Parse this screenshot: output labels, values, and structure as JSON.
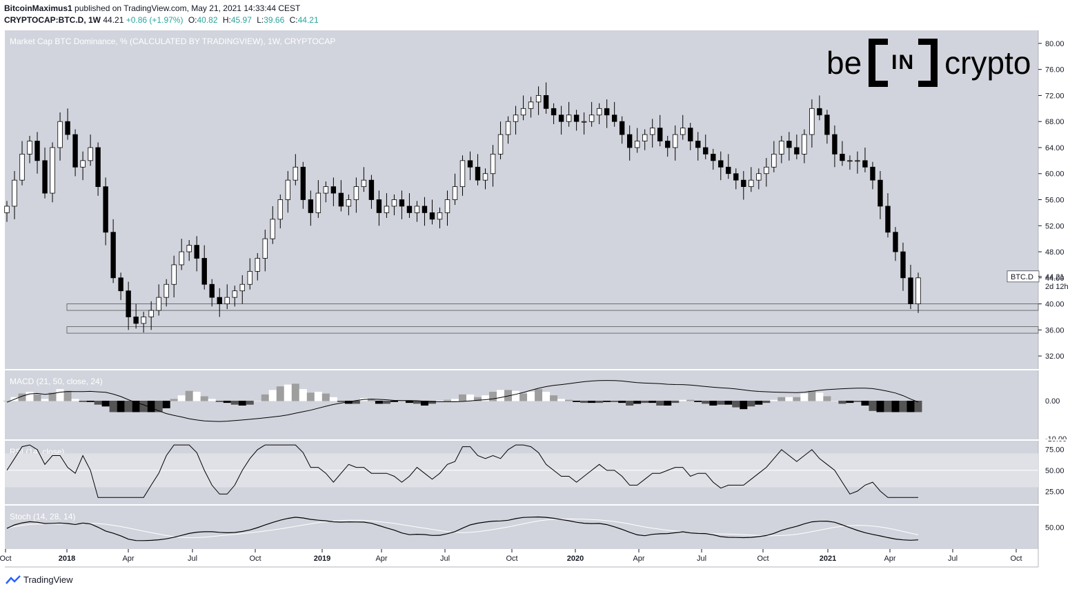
{
  "header": {
    "author": "BitcoinMaximus1",
    "published": "published on TradingView.com, May 21, 2021 14:33:44 CEST",
    "symbol": "CRYPTOCAP:BTC.D, 1W",
    "last": "44.21",
    "change": "+0.86 (+1.97%)",
    "o_label": "O:",
    "o_val": "40.82",
    "h_label": "H:",
    "h_val": "45.97",
    "l_label": "L:",
    "l_val": "39.66",
    "c_label": "C:",
    "c_val": "44.21"
  },
  "main_title": "Market Cap BTC Dominance, % (CALCULATED BY TRADINGVIEW), 1W, CRYPTOCAP",
  "price_tag": {
    "symbol": "BTC.D",
    "value": "44.21",
    "countdown": "2d 12h"
  },
  "logo": {
    "left": "be",
    "middle": "IN",
    "right": "crypto"
  },
  "footer": {
    "brand": "TradingView"
  },
  "colors": {
    "pane_bg": "#d1d4dc",
    "up": "#ffffff",
    "down": "#000000",
    "accent": "#26a69a"
  },
  "chart_data": [
    {
      "type": "candlestick",
      "title": "Market Cap BTC Dominance, % (CALCULATED BY TRADINGVIEW), 1W, CRYPTOCAP",
      "ylim": [
        30,
        82
      ],
      "y_ticks": [
        "80.00",
        "76.00",
        "72.00",
        "68.00",
        "64.00",
        "60.00",
        "56.00",
        "52.00",
        "48.00",
        "44.00",
        "40.00",
        "36.00",
        "32.00"
      ],
      "x_ticks": [
        "Oct",
        "2018",
        "Apr",
        "Jul",
        "Oct",
        "2019",
        "Apr",
        "Jul",
        "Oct",
        "2020",
        "Apr",
        "Jul",
        "Oct",
        "2021",
        "Apr",
        "Jul",
        "Oct"
      ],
      "support_zones": [
        [
          39.0,
          40.0
        ],
        [
          35.5,
          36.5
        ]
      ],
      "close_path": [
        55,
        59,
        63,
        65,
        62,
        57,
        64,
        68,
        66,
        61,
        62,
        64,
        58,
        51,
        44,
        42,
        38,
        37,
        38,
        39,
        41,
        43,
        46,
        48,
        49,
        47,
        43,
        41,
        40,
        41,
        42,
        43,
        45,
        47,
        50,
        53,
        56,
        59,
        61,
        56,
        54,
        57,
        58,
        57,
        55,
        56,
        58,
        59,
        56,
        54,
        55,
        56,
        55,
        54,
        55,
        54,
        53,
        54,
        56,
        58,
        62,
        61,
        59,
        60,
        63,
        66,
        68,
        69,
        70,
        71,
        72,
        70,
        69,
        68,
        69,
        68,
        68,
        69,
        70,
        69,
        68,
        66,
        64,
        65,
        66,
        67,
        65,
        64,
        66,
        67,
        65,
        64,
        63,
        62,
        61,
        60,
        59,
        58,
        59,
        60,
        61,
        63,
        65,
        64,
        63,
        66,
        70,
        69,
        66,
        63,
        62,
        62,
        62,
        61,
        59,
        55,
        51,
        48,
        44,
        40,
        44
      ],
      "last": 44.21
    },
    {
      "type": "histogram",
      "title": "MACD (21, 50, close, 24)",
      "y_ticks": [
        "0.00",
        "-10.00"
      ]
    },
    {
      "type": "line",
      "title": "RSI (14, close)",
      "y_ticks": [
        "75.00",
        "50.00",
        "25.00"
      ]
    },
    {
      "type": "line",
      "title": "Stoch (14, 28, 14)",
      "y_ticks": [
        "50.00"
      ]
    }
  ]
}
